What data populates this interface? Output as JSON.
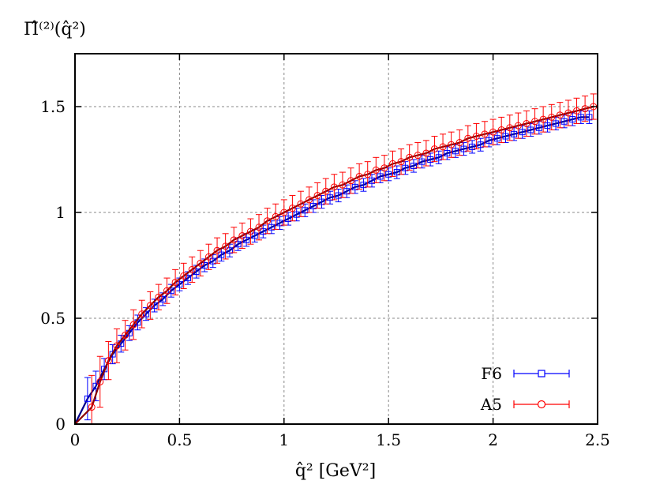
{
  "chart_data": {
    "type": "scatter",
    "title": "",
    "ylabel": "Π̂⁽²⁾(q̂²)",
    "xlabel": "q̂² [GeV²]",
    "xlim": [
      0,
      2.5
    ],
    "ylim": [
      0,
      1.75
    ],
    "x_ticks": [
      {
        "value": 0,
        "label": "0"
      },
      {
        "value": 0.5,
        "label": "0.5"
      },
      {
        "value": 1,
        "label": "1"
      },
      {
        "value": 1.5,
        "label": "1.5"
      },
      {
        "value": 2,
        "label": "2"
      },
      {
        "value": 2.5,
        "label": "2.5"
      }
    ],
    "y_ticks": [
      {
        "value": 0,
        "label": "0"
      },
      {
        "value": 0.5,
        "label": "0.5"
      },
      {
        "value": 1,
        "label": "1"
      },
      {
        "value": 1.5,
        "label": "1.5"
      }
    ],
    "grid": true,
    "legend_position": "bottom-right",
    "series": [
      {
        "name": "F6",
        "color": "#0000ff",
        "fit_color": "#00008b",
        "marker": "square",
        "x": [
          0.06,
          0.1,
          0.14,
          0.18,
          0.22,
          0.26,
          0.3,
          0.34,
          0.38,
          0.42,
          0.46,
          0.5,
          0.54,
          0.58,
          0.62,
          0.66,
          0.7,
          0.74,
          0.78,
          0.82,
          0.86,
          0.9,
          0.94,
          0.98,
          1.02,
          1.06,
          1.1,
          1.14,
          1.18,
          1.22,
          1.26,
          1.3,
          1.34,
          1.38,
          1.42,
          1.46,
          1.5,
          1.54,
          1.58,
          1.62,
          1.66,
          1.7,
          1.74,
          1.78,
          1.82,
          1.86,
          1.9,
          1.94,
          1.98,
          2.02,
          2.06,
          2.1,
          2.14,
          2.18,
          2.22,
          2.26,
          2.3,
          2.34,
          2.38,
          2.42,
          2.46
        ],
        "y": [
          0.12,
          0.18,
          0.26,
          0.33,
          0.38,
          0.43,
          0.48,
          0.52,
          0.56,
          0.59,
          0.63,
          0.66,
          0.69,
          0.72,
          0.75,
          0.77,
          0.8,
          0.82,
          0.85,
          0.87,
          0.89,
          0.91,
          0.93,
          0.95,
          0.97,
          0.99,
          1.01,
          1.03,
          1.05,
          1.07,
          1.08,
          1.1,
          1.12,
          1.13,
          1.15,
          1.17,
          1.18,
          1.19,
          1.21,
          1.22,
          1.24,
          1.25,
          1.26,
          1.28,
          1.29,
          1.3,
          1.31,
          1.32,
          1.34,
          1.35,
          1.36,
          1.37,
          1.38,
          1.39,
          1.4,
          1.41,
          1.42,
          1.43,
          1.44,
          1.45,
          1.45
        ],
        "err": [
          0.1,
          0.07,
          0.05,
          0.045,
          0.04,
          0.035,
          0.035,
          0.03,
          0.03,
          0.03,
          0.03,
          0.03,
          0.03,
          0.03,
          0.03,
          0.03,
          0.03,
          0.03,
          0.03,
          0.03,
          0.03,
          0.03,
          0.03,
          0.03,
          0.03,
          0.03,
          0.03,
          0.03,
          0.03,
          0.03,
          0.03,
          0.03,
          0.03,
          0.03,
          0.03,
          0.03,
          0.03,
          0.03,
          0.03,
          0.03,
          0.03,
          0.03,
          0.03,
          0.03,
          0.03,
          0.03,
          0.03,
          0.03,
          0.03,
          0.03,
          0.03,
          0.03,
          0.03,
          0.03,
          0.03,
          0.03,
          0.03,
          0.03,
          0.03,
          0.03,
          0.03
        ]
      },
      {
        "name": "A5",
        "color": "#ff0000",
        "fit_color": "#8b0000",
        "marker": "circle",
        "x": [
          0.08,
          0.12,
          0.16,
          0.2,
          0.24,
          0.28,
          0.32,
          0.36,
          0.4,
          0.44,
          0.48,
          0.52,
          0.56,
          0.6,
          0.64,
          0.68,
          0.72,
          0.76,
          0.8,
          0.84,
          0.88,
          0.92,
          0.96,
          1.0,
          1.04,
          1.08,
          1.12,
          1.16,
          1.2,
          1.24,
          1.28,
          1.32,
          1.36,
          1.4,
          1.44,
          1.48,
          1.52,
          1.56,
          1.6,
          1.64,
          1.68,
          1.72,
          1.76,
          1.8,
          1.84,
          1.88,
          1.92,
          1.96,
          2.0,
          2.04,
          2.08,
          2.12,
          2.16,
          2.2,
          2.24,
          2.28,
          2.32,
          2.36,
          2.4,
          2.44,
          2.48
        ],
        "y": [
          0.08,
          0.2,
          0.3,
          0.37,
          0.42,
          0.47,
          0.52,
          0.56,
          0.6,
          0.63,
          0.67,
          0.7,
          0.73,
          0.76,
          0.79,
          0.82,
          0.84,
          0.87,
          0.89,
          0.91,
          0.93,
          0.96,
          0.98,
          1.0,
          1.02,
          1.04,
          1.06,
          1.08,
          1.1,
          1.12,
          1.13,
          1.15,
          1.17,
          1.18,
          1.2,
          1.21,
          1.23,
          1.24,
          1.26,
          1.27,
          1.28,
          1.3,
          1.31,
          1.32,
          1.33,
          1.35,
          1.36,
          1.37,
          1.38,
          1.39,
          1.4,
          1.41,
          1.42,
          1.43,
          1.44,
          1.45,
          1.46,
          1.47,
          1.48,
          1.49,
          1.5
        ],
        "err": [
          0.15,
          0.12,
          0.09,
          0.08,
          0.07,
          0.07,
          0.065,
          0.065,
          0.06,
          0.06,
          0.06,
          0.06,
          0.06,
          0.06,
          0.06,
          0.06,
          0.06,
          0.06,
          0.06,
          0.06,
          0.06,
          0.06,
          0.06,
          0.06,
          0.06,
          0.06,
          0.06,
          0.06,
          0.06,
          0.06,
          0.06,
          0.06,
          0.06,
          0.06,
          0.06,
          0.06,
          0.06,
          0.06,
          0.06,
          0.06,
          0.06,
          0.06,
          0.06,
          0.06,
          0.06,
          0.06,
          0.06,
          0.06,
          0.06,
          0.06,
          0.06,
          0.06,
          0.06,
          0.06,
          0.06,
          0.06,
          0.06,
          0.06,
          0.06,
          0.06,
          0.06
        ]
      }
    ]
  }
}
